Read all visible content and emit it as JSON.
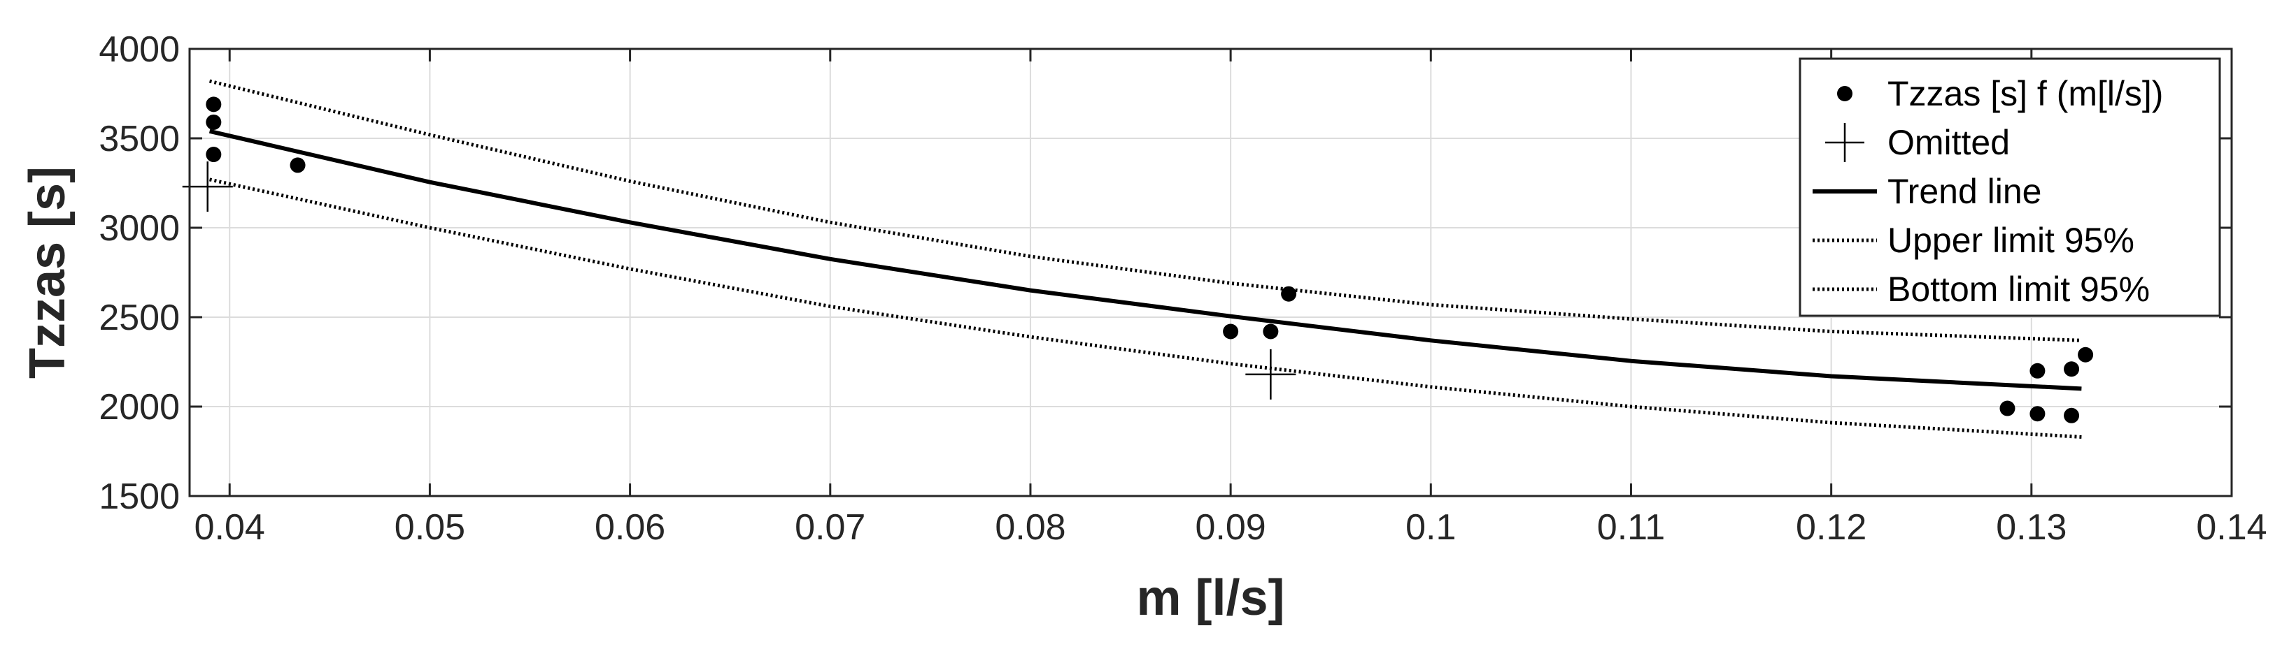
{
  "chart_data": {
    "type": "scatter",
    "title": "",
    "xlabel": "m [l/s]",
    "ylabel": "Tzzas [s]",
    "xlim": [
      0.038,
      0.14
    ],
    "ylim": [
      1500,
      4000
    ],
    "grid": true,
    "legend_position": "top-right",
    "x_ticks": [
      0.04,
      0.05,
      0.06,
      0.07,
      0.08,
      0.09,
      0.1,
      0.11,
      0.12,
      0.13,
      0.14
    ],
    "x_tick_labels": [
      "0.04",
      "0.05",
      "0.06",
      "0.07",
      "0.08",
      "0.09",
      "0.1",
      "0.11",
      "0.12",
      "0.13",
      "0.14"
    ],
    "y_ticks": [
      1500,
      2000,
      2500,
      3000,
      3500,
      4000
    ],
    "y_tick_labels": [
      "1500",
      "2000",
      "2500",
      "3000",
      "3500",
      "4000"
    ],
    "series": [
      {
        "name": "Tzzas [s] f (m[l/s])",
        "kind": "points",
        "marker": "filled-dot",
        "points": [
          {
            "x": 0.0392,
            "y": 3690
          },
          {
            "x": 0.0392,
            "y": 3590
          },
          {
            "x": 0.0392,
            "y": 3410
          },
          {
            "x": 0.0434,
            "y": 3350
          },
          {
            "x": 0.09,
            "y": 2420
          },
          {
            "x": 0.092,
            "y": 2420
          },
          {
            "x": 0.0929,
            "y": 2630
          },
          {
            "x": 0.1288,
            "y": 1990
          },
          {
            "x": 0.1303,
            "y": 2200
          },
          {
            "x": 0.1303,
            "y": 1960
          },
          {
            "x": 0.132,
            "y": 2210
          },
          {
            "x": 0.132,
            "y": 1950
          },
          {
            "x": 0.1327,
            "y": 2290
          }
        ]
      },
      {
        "name": "Omitted",
        "kind": "points",
        "marker": "plus",
        "points": [
          {
            "x": 0.0389,
            "y": 3230
          },
          {
            "x": 0.092,
            "y": 2180
          }
        ]
      },
      {
        "name": "Trend line",
        "kind": "line",
        "style": "solid",
        "points": [
          {
            "x": 0.039,
            "y": 3540
          },
          {
            "x": 0.05,
            "y": 3255
          },
          {
            "x": 0.06,
            "y": 3030
          },
          {
            "x": 0.07,
            "y": 2825
          },
          {
            "x": 0.08,
            "y": 2650
          },
          {
            "x": 0.09,
            "y": 2505
          },
          {
            "x": 0.1,
            "y": 2370
          },
          {
            "x": 0.11,
            "y": 2255
          },
          {
            "x": 0.12,
            "y": 2170
          },
          {
            "x": 0.1325,
            "y": 2100
          }
        ]
      },
      {
        "name": "Upper limit 95%",
        "kind": "line",
        "style": "dotted",
        "points": [
          {
            "x": 0.039,
            "y": 3820
          },
          {
            "x": 0.05,
            "y": 3520
          },
          {
            "x": 0.06,
            "y": 3260
          },
          {
            "x": 0.07,
            "y": 3030
          },
          {
            "x": 0.08,
            "y": 2840
          },
          {
            "x": 0.09,
            "y": 2690
          },
          {
            "x": 0.1,
            "y": 2570
          },
          {
            "x": 0.11,
            "y": 2490
          },
          {
            "x": 0.12,
            "y": 2420
          },
          {
            "x": 0.1325,
            "y": 2370
          }
        ]
      },
      {
        "name": "Bottom limit 95%",
        "kind": "line",
        "style": "dotted",
        "points": [
          {
            "x": 0.039,
            "y": 3270
          },
          {
            "x": 0.05,
            "y": 3000
          },
          {
            "x": 0.06,
            "y": 2770
          },
          {
            "x": 0.07,
            "y": 2560
          },
          {
            "x": 0.08,
            "y": 2390
          },
          {
            "x": 0.09,
            "y": 2240
          },
          {
            "x": 0.1,
            "y": 2110
          },
          {
            "x": 0.11,
            "y": 2000
          },
          {
            "x": 0.12,
            "y": 1910
          },
          {
            "x": 0.1325,
            "y": 1830
          }
        ]
      }
    ],
    "colors": {
      "marks": "#000000",
      "grid": "#dcdcdc",
      "axis": "#262626",
      "background": "#ffffff"
    }
  }
}
